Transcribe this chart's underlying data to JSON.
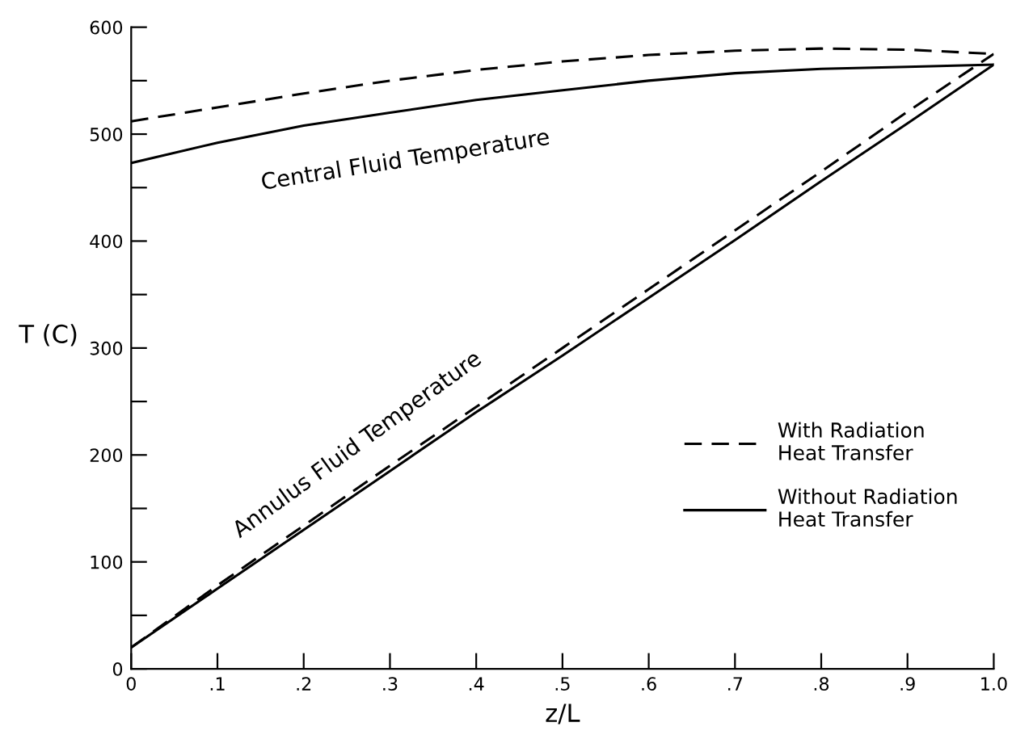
{
  "chart_data": {
    "type": "line",
    "xlabel": "z/L",
    "ylabel": "T (C)",
    "x": [
      0,
      0.1,
      0.2,
      0.3,
      0.4,
      0.5,
      0.6,
      0.7,
      0.8,
      0.9,
      1.0
    ],
    "series": [
      {
        "name": "With Radiation\nHeat Transfer",
        "color": "#000000",
        "line_style": "dashed",
        "values": [
          512,
          525,
          538,
          550,
          560,
          568,
          574,
          578,
          580,
          579,
          575
        ]
      },
      {
        "color": "#000000",
        "line_style": "dashed",
        "values": [
          20,
          78,
          134,
          190,
          245,
          300,
          355,
          410,
          465,
          521,
          575
        ]
      },
      {
        "name": "Without Radiation\nHeat Transfer",
        "color": "#000000",
        "line_style": "solid",
        "values": [
          473,
          492,
          508,
          520,
          532,
          541,
          550,
          557,
          561,
          563,
          565
        ]
      },
      {
        "color": "#000000",
        "line_style": "solid",
        "values": [
          20,
          75,
          130,
          185,
          240,
          293,
          347,
          401,
          456,
          510,
          565
        ]
      }
    ],
    "xlim": [
      0,
      1.0
    ],
    "ylim": [
      0,
      600
    ],
    "xticks": [
      0,
      {
        "value": 0.1,
        "label": ".1"
      },
      {
        "value": 0.2,
        "label": ".2"
      },
      {
        "value": 0.3,
        "label": ".3"
      },
      {
        "value": 0.4,
        "label": ".4"
      },
      {
        "value": 0.5,
        "label": ".5"
      },
      {
        "value": 0.6,
        "label": ".6"
      },
      {
        "value": 0.7,
        "label": ".7"
      },
      {
        "value": 0.8,
        "label": ".8"
      },
      {
        "value": 0.9,
        "label": ".9"
      },
      {
        "value": 1.0,
        "label": "1.0"
      }
    ],
    "yticks": [
      0,
      {
        "value": 50,
        "label": null
      },
      100,
      {
        "value": 150,
        "label": null
      },
      200,
      {
        "value": 250,
        "label": null
      },
      300,
      {
        "value": 350,
        "label": null
      },
      400,
      {
        "value": 450,
        "label": null
      },
      500,
      {
        "value": 550,
        "label": null
      },
      600
    ],
    "annotations": [
      "Central Fluid Temperature",
      "Annulus Fluid Temperature"
    ],
    "grid": false,
    "legend": "right",
    "marker": "none"
  }
}
